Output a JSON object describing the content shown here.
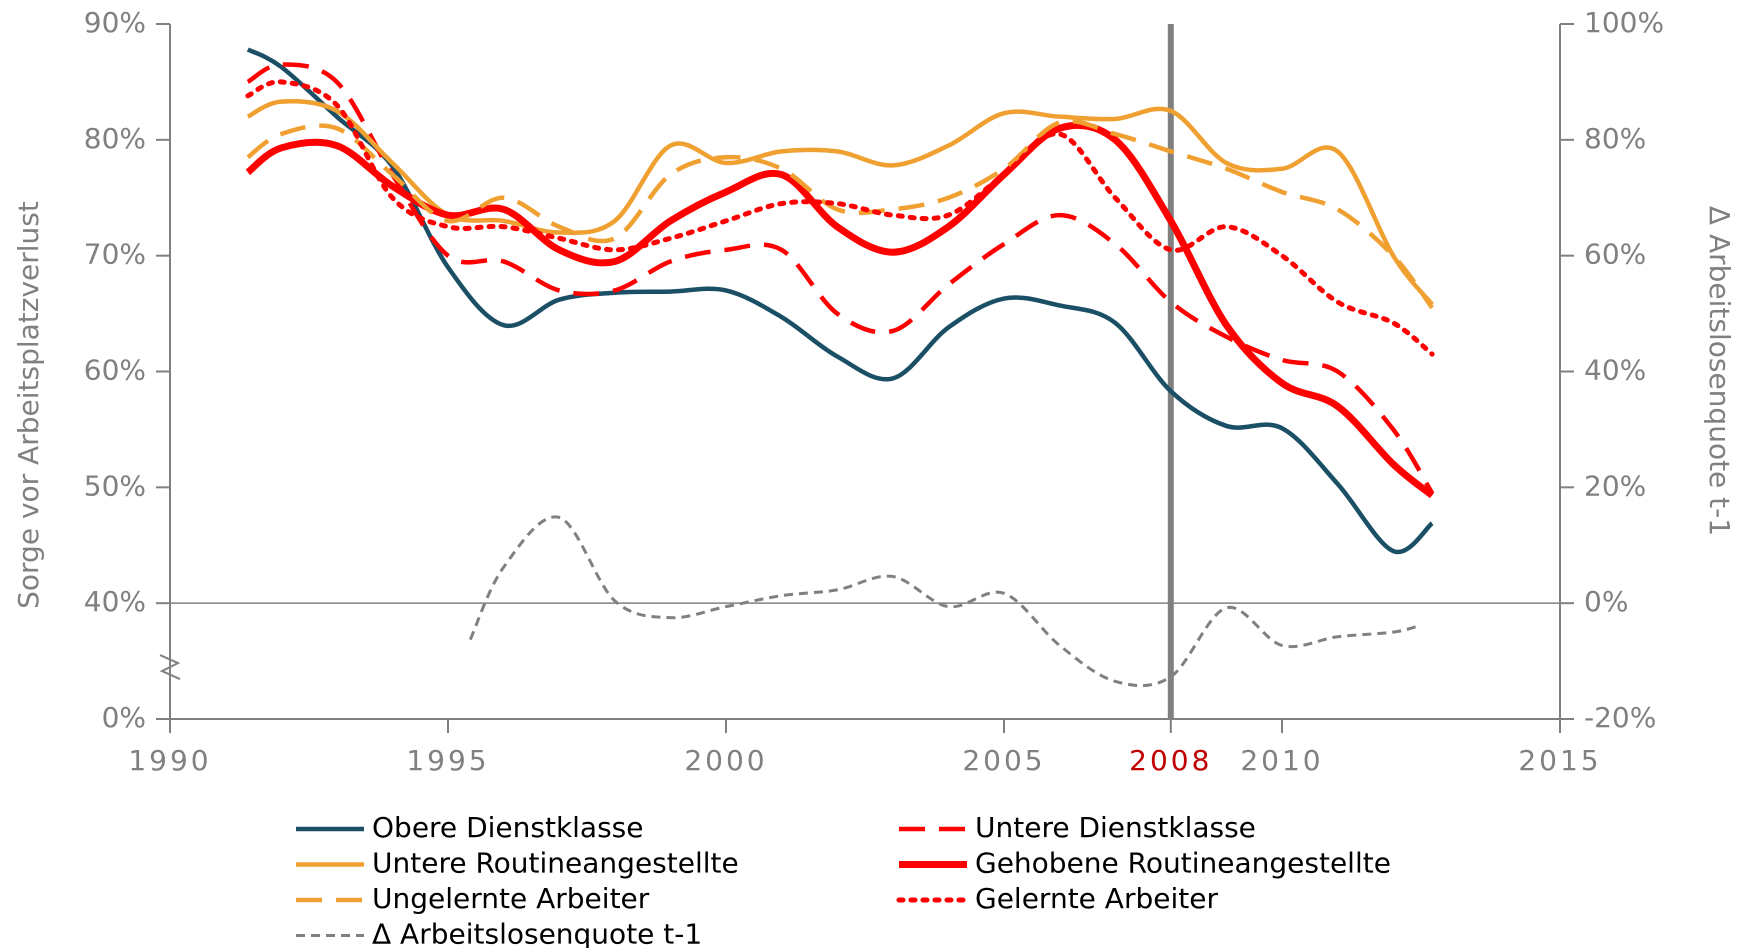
{
  "chart_data": {
    "type": "line",
    "ylabel": "Sorge vor Arbeitsplatzverlust",
    "y2label": "Δ Arbeitslosenquote t-1",
    "xlim": [
      1990,
      2015
    ],
    "xticks": [
      1990,
      1995,
      2000,
      2005,
      2008,
      2010,
      2015
    ],
    "highlight_x": 2008,
    "highlight_color": "#c00000",
    "ylim": [
      0,
      90
    ],
    "ybreak": 40,
    "yticks": [
      {
        "value": 0,
        "label": "0%"
      },
      {
        "value": 40,
        "label": "40%"
      },
      {
        "value": 50,
        "label": "50%"
      },
      {
        "value": 60,
        "label": "60%"
      },
      {
        "value": 70,
        "label": "70%"
      },
      {
        "value": 80,
        "label": "80%"
      },
      {
        "value": 90,
        "label": "90%"
      }
    ],
    "y2lim": [
      -20,
      100
    ],
    "y2ticks": [
      {
        "value": -20,
        "label": "-20%"
      },
      {
        "value": 0,
        "label": "0%"
      },
      {
        "value": 20,
        "label": "20%"
      },
      {
        "value": 40,
        "label": "40%"
      },
      {
        "value": 60,
        "label": "60%"
      },
      {
        "value": 80,
        "label": "80%"
      },
      {
        "value": 100,
        "label": "100%"
      }
    ],
    "legend": "bottom",
    "series": [
      {
        "name": "Obere Dienstklasse",
        "color": "#1b4f66",
        "dash": "solid",
        "x": [
          1991.4,
          1992,
          1993,
          1994,
          1995,
          1996,
          1997,
          1998,
          1999,
          2000,
          2001,
          2002,
          2003,
          2004,
          2005,
          2006,
          2007,
          2008,
          2009,
          2010,
          2011,
          2012,
          2012.7
        ],
        "values": [
          87.8,
          86.3,
          82,
          77.7,
          69,
          64,
          66.2,
          66.8,
          66.9,
          67,
          64.7,
          61.3,
          59.4,
          63.8,
          66.3,
          65.7,
          64.2,
          58.3,
          55.3,
          55.1,
          50.3,
          44.5,
          46.9
        ]
      },
      {
        "name": "Untere Dienstklasse",
        "color": "#ff0000",
        "dash": "dashed",
        "x": [
          1991.4,
          1992,
          1993,
          1994,
          1995,
          1996,
          1997,
          1998,
          1999,
          2000,
          2001,
          2002,
          2003,
          2004,
          2005,
          2006,
          2007,
          2008,
          2009,
          2010,
          2011,
          2012,
          2012.7
        ],
        "values": [
          85,
          86.5,
          85,
          77,
          70,
          69.5,
          67,
          67,
          69.5,
          70.5,
          70.5,
          65,
          63.5,
          67.5,
          71,
          73.5,
          71,
          66,
          63,
          61,
          60,
          55,
          49.5
        ]
      },
      {
        "name": "Untere Routineangestellte",
        "color": "#f0a030",
        "dash": "solid",
        "x": [
          1991.4,
          1992,
          1993,
          1994,
          1995,
          1996,
          1997,
          1998,
          1999,
          2000,
          2001,
          2002,
          2003,
          2004,
          2005,
          2006,
          2007,
          2008,
          2009,
          2010,
          2011,
          2012,
          2012.7
        ],
        "values": [
          82,
          83.3,
          82.5,
          78,
          73.5,
          73,
          72,
          73,
          79.5,
          78,
          79,
          79,
          77.8,
          79.5,
          82.3,
          82,
          81.8,
          82.5,
          78,
          77.5,
          79,
          70,
          65.8
        ]
      },
      {
        "name": "Gehobene Routineangestellte",
        "color": "#ff0000",
        "dash": "solid",
        "weight": "bold",
        "x": [
          1991.4,
          1992,
          1993,
          1994,
          1995,
          1996,
          1997,
          1998,
          1999,
          2000,
          2001,
          2002,
          2003,
          2004,
          2005,
          2006,
          2007,
          2008,
          2009,
          2010,
          2011,
          2012,
          2012.7
        ],
        "values": [
          77.2,
          79.3,
          79.5,
          76,
          73.5,
          74,
          70.5,
          69.5,
          73,
          75.5,
          77,
          72.5,
          70.3,
          72.5,
          77,
          81,
          80,
          73,
          64,
          59,
          57,
          52,
          49.3
        ]
      },
      {
        "name": "Ungelernte Arbeiter",
        "color": "#f0a030",
        "dash": "dashed",
        "x": [
          1991.4,
          1992,
          1993,
          1994,
          1995,
          1996,
          1997,
          1998,
          1999,
          2000,
          2001,
          2002,
          2003,
          2004,
          2005,
          2006,
          2007,
          2008,
          2009,
          2010,
          2011,
          2012,
          2012.7
        ],
        "values": [
          78.5,
          80.5,
          81,
          77,
          73,
          75,
          72.5,
          71.5,
          77,
          78.5,
          77.5,
          74,
          74,
          75,
          77.5,
          81.5,
          80.5,
          79,
          77.5,
          75.5,
          74,
          70,
          65.5
        ]
      },
      {
        "name": "Gelernte Arbeiter",
        "color": "#ff0000",
        "dash": "dotted",
        "x": [
          1991.4,
          1992,
          1993,
          1994,
          1995,
          1996,
          1997,
          1998,
          1999,
          2000,
          2001,
          2002,
          2003,
          2004,
          2005,
          2006,
          2007,
          2008,
          2009,
          2010,
          2011,
          2012,
          2012.7
        ],
        "values": [
          83.8,
          85,
          83,
          75,
          72.5,
          72.5,
          71.5,
          70.5,
          71.5,
          73,
          74.5,
          74.5,
          73.5,
          73.5,
          77,
          80.5,
          75,
          70.5,
          72.5,
          70,
          66,
          64.2,
          61.5
        ]
      },
      {
        "name": "Δ Arbeitslosenquote t-1",
        "color": "#808080",
        "dash": "fine",
        "axis": "y2",
        "x": [
          1995.4,
          1996,
          1997,
          1998,
          1999,
          2000,
          2001,
          2002,
          2003,
          2004,
          2005,
          2006,
          2007,
          2008,
          2009,
          2010,
          2011,
          2012,
          2012.5
        ],
        "values": [
          -6.3,
          6.2,
          14.8,
          0.4,
          -2.5,
          -0.6,
          1.3,
          2.3,
          4.6,
          -0.6,
          1.7,
          -7.3,
          -13.5,
          -12.7,
          -0.8,
          -7.3,
          -5.8,
          -5,
          -3.8
        ]
      }
    ]
  }
}
